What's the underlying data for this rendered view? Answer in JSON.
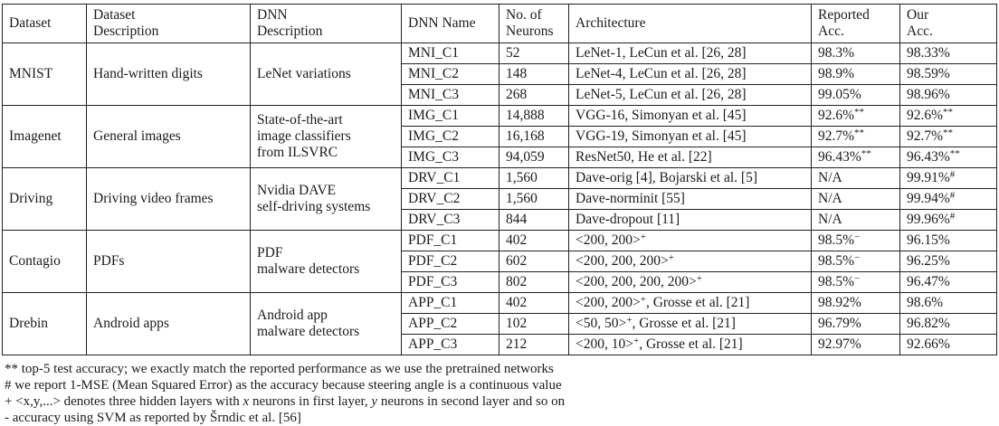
{
  "table": {
    "headers": [
      {
        "key": "dataset",
        "segments": [
          {
            "t": "Dataset"
          }
        ]
      },
      {
        "key": "dataset-description",
        "segments": [
          {
            "t": "Dataset"
          },
          {
            "br": true
          },
          {
            "t": "Description"
          }
        ]
      },
      {
        "key": "dnn-description",
        "segments": [
          {
            "t": "DNN"
          },
          {
            "br": true
          },
          {
            "t": "Description"
          }
        ]
      },
      {
        "key": "dnn-name",
        "segments": [
          {
            "t": "DNN Name"
          }
        ]
      },
      {
        "key": "no-of-neurons",
        "segments": [
          {
            "t": "No. of"
          },
          {
            "br": true
          },
          {
            "t": "Neurons"
          }
        ]
      },
      {
        "key": "architecture",
        "segments": [
          {
            "t": "Architecture"
          }
        ]
      },
      {
        "key": "reported-acc",
        "segments": [
          {
            "t": "Reported"
          },
          {
            "br": true
          },
          {
            "t": "Acc."
          }
        ]
      },
      {
        "key": "our-acc",
        "segments": [
          {
            "t": "Our"
          },
          {
            "br": true
          },
          {
            "t": "Acc."
          }
        ]
      }
    ],
    "groups": [
      {
        "dataset": [
          {
            "t": "MNIST"
          }
        ],
        "dataset_description": [
          {
            "t": "Hand-written digits"
          }
        ],
        "dnn_description": [
          {
            "t": "LeNet variations"
          }
        ],
        "rows": [
          {
            "dnn_name": [
              {
                "t": "MNI_C1"
              }
            ],
            "neurons": [
              {
                "t": "52"
              }
            ],
            "architecture": [
              {
                "t": "LeNet-1, LeCun et al. [26, 28]"
              }
            ],
            "reported_acc": [
              {
                "t": "98.3%"
              }
            ],
            "our_acc": [
              {
                "t": "98.33%"
              }
            ]
          },
          {
            "dnn_name": [
              {
                "t": "MNI_C2"
              }
            ],
            "neurons": [
              {
                "t": "148"
              }
            ],
            "architecture": [
              {
                "t": "LeNet-4, LeCun et al. [26, 28]"
              }
            ],
            "reported_acc": [
              {
                "t": "98.9%"
              }
            ],
            "our_acc": [
              {
                "t": "98.59%"
              }
            ]
          },
          {
            "dnn_name": [
              {
                "t": "MNI_C3"
              }
            ],
            "neurons": [
              {
                "t": "268"
              }
            ],
            "architecture": [
              {
                "t": "LeNet-5, LeCun et al. [26, 28]"
              }
            ],
            "reported_acc": [
              {
                "t": "99.05%"
              }
            ],
            "our_acc": [
              {
                "t": "98.96%"
              }
            ]
          }
        ]
      },
      {
        "dataset": [
          {
            "t": "Imagenet"
          }
        ],
        "dataset_description": [
          {
            "t": "General images"
          }
        ],
        "dnn_description": [
          {
            "t": "State-of-the-art"
          },
          {
            "br": true
          },
          {
            "t": "image classifiers"
          },
          {
            "br": true
          },
          {
            "t": "from ILSVRC"
          }
        ],
        "rows": [
          {
            "dnn_name": [
              {
                "t": "IMG_C1"
              }
            ],
            "neurons": [
              {
                "t": "14,888"
              }
            ],
            "architecture": [
              {
                "t": "VGG-16, Simonyan et al. [45]"
              }
            ],
            "reported_acc": [
              {
                "t": "92.6%"
              },
              {
                "sup": "**"
              }
            ],
            "our_acc": [
              {
                "t": "92.6%"
              },
              {
                "sup": "**"
              }
            ]
          },
          {
            "dnn_name": [
              {
                "t": "IMG_C2"
              }
            ],
            "neurons": [
              {
                "t": "16,168"
              }
            ],
            "architecture": [
              {
                "t": "VGG-19, Simonyan et al. [45]"
              }
            ],
            "reported_acc": [
              {
                "t": "92.7%"
              },
              {
                "sup": "**"
              }
            ],
            "our_acc": [
              {
                "t": "92.7%"
              },
              {
                "sup": "**"
              }
            ]
          },
          {
            "dnn_name": [
              {
                "t": "IMG_C3"
              }
            ],
            "neurons": [
              {
                "t": "94,059"
              }
            ],
            "architecture": [
              {
                "t": "ResNet50, He et al. [22]"
              }
            ],
            "reported_acc": [
              {
                "t": "96.43%"
              },
              {
                "sup": "**"
              }
            ],
            "our_acc": [
              {
                "t": "96.43%"
              },
              {
                "sup": "**"
              }
            ]
          }
        ]
      },
      {
        "dataset": [
          {
            "t": "Driving"
          }
        ],
        "dataset_description": [
          {
            "t": "Driving video frames"
          }
        ],
        "dnn_description": [
          {
            "t": "Nvidia DAVE"
          },
          {
            "br": true
          },
          {
            "t": "self-driving systems"
          }
        ],
        "rows": [
          {
            "dnn_name": [
              {
                "t": "DRV_C1"
              }
            ],
            "neurons": [
              {
                "t": "1,560"
              }
            ],
            "architecture": [
              {
                "t": "Dave-orig [4], Bojarski et al. [5]"
              }
            ],
            "reported_acc": [
              {
                "t": "N/A"
              }
            ],
            "our_acc": [
              {
                "t": "99.91%"
              },
              {
                "sup": "#"
              }
            ]
          },
          {
            "dnn_name": [
              {
                "t": "DRV_C2"
              }
            ],
            "neurons": [
              {
                "t": "1,560"
              }
            ],
            "architecture": [
              {
                "t": "Dave-norminit [55]"
              }
            ],
            "reported_acc": [
              {
                "t": "N/A"
              }
            ],
            "our_acc": [
              {
                "t": "99.94%"
              },
              {
                "sup": "#"
              }
            ]
          },
          {
            "dnn_name": [
              {
                "t": "DRV_C3"
              }
            ],
            "neurons": [
              {
                "t": "844"
              }
            ],
            "architecture": [
              {
                "t": "Dave-dropout [11]"
              }
            ],
            "reported_acc": [
              {
                "t": "N/A"
              }
            ],
            "our_acc": [
              {
                "t": "99.96%"
              },
              {
                "sup": "#"
              }
            ]
          }
        ]
      },
      {
        "dataset": [
          {
            "t": "Contagio"
          }
        ],
        "dataset_description": [
          {
            "t": "PDFs"
          }
        ],
        "dnn_description": [
          {
            "t": "PDF"
          },
          {
            "br": true
          },
          {
            "t": "malware detectors"
          }
        ],
        "rows": [
          {
            "dnn_name": [
              {
                "t": "PDF_C1"
              }
            ],
            "neurons": [
              {
                "t": "402"
              }
            ],
            "architecture": [
              {
                "t": "<200, 200>"
              },
              {
                "sup": "+"
              }
            ],
            "reported_acc": [
              {
                "t": "98.5%"
              },
              {
                "sup": "−"
              }
            ],
            "our_acc": [
              {
                "t": "96.15%"
              }
            ]
          },
          {
            "dnn_name": [
              {
                "t": "PDF_C2"
              }
            ],
            "neurons": [
              {
                "t": "602"
              }
            ],
            "architecture": [
              {
                "t": "<200, 200, 200>"
              },
              {
                "sup": "+"
              }
            ],
            "reported_acc": [
              {
                "t": "98.5%"
              },
              {
                "sup": "−"
              }
            ],
            "our_acc": [
              {
                "t": "96.25%"
              }
            ]
          },
          {
            "dnn_name": [
              {
                "t": "PDF_C3"
              }
            ],
            "neurons": [
              {
                "t": "802"
              }
            ],
            "architecture": [
              {
                "t": "<200, 200, 200, 200>"
              },
              {
                "sup": "+"
              }
            ],
            "reported_acc": [
              {
                "t": "98.5%"
              },
              {
                "sup": "−"
              }
            ],
            "our_acc": [
              {
                "t": "96.47%"
              }
            ]
          }
        ]
      },
      {
        "dataset": [
          {
            "t": "Drebin"
          }
        ],
        "dataset_description": [
          {
            "t": "Android apps"
          }
        ],
        "dnn_description": [
          {
            "t": "Android app"
          },
          {
            "br": true
          },
          {
            "t": "malware detectors"
          }
        ],
        "rows": [
          {
            "dnn_name": [
              {
                "t": "APP_C1"
              }
            ],
            "neurons": [
              {
                "t": "402"
              }
            ],
            "architecture": [
              {
                "t": "<200, 200>"
              },
              {
                "sup": "+"
              },
              {
                "t": ", Grosse et al. [21]"
              }
            ],
            "reported_acc": [
              {
                "t": "98.92%"
              }
            ],
            "our_acc": [
              {
                "t": "98.6%"
              }
            ]
          },
          {
            "dnn_name": [
              {
                "t": "APP_C2"
              }
            ],
            "neurons": [
              {
                "t": "102"
              }
            ],
            "architecture": [
              {
                "t": "<50, 50>"
              },
              {
                "sup": "+"
              },
              {
                "t": ", Grosse et al. [21]"
              }
            ],
            "reported_acc": [
              {
                "t": "96.79%"
              }
            ],
            "our_acc": [
              {
                "t": "96.82%"
              }
            ]
          },
          {
            "dnn_name": [
              {
                "t": "APP_C3"
              }
            ],
            "neurons": [
              {
                "t": "212"
              }
            ],
            "architecture": [
              {
                "t": "<200, 10>"
              },
              {
                "sup": "+"
              },
              {
                "t": ", Grosse et al. [21]"
              }
            ],
            "reported_acc": [
              {
                "t": "92.97%"
              }
            ],
            "our_acc": [
              {
                "t": "92.66%"
              }
            ]
          }
        ]
      }
    ]
  },
  "footnotes": [
    {
      "segments": [
        {
          "t": "** top-5 test accuracy; we exactly match the reported performance as we use the pretrained networks"
        }
      ]
    },
    {
      "segments": [
        {
          "t": "# we report 1-MSE (Mean Squared Error) as the accuracy because steering angle is a continuous value"
        }
      ]
    },
    {
      "segments": [
        {
          "t": "+ <x,y,...> denotes three hidden layers with "
        },
        {
          "i": "x"
        },
        {
          "t": " neurons in first layer, "
        },
        {
          "i": "y"
        },
        {
          "t": " neurons in second layer and so on"
        }
      ]
    },
    {
      "segments": [
        {
          "t": "- accuracy using SVM as reported by Šrndic et al. [56]"
        }
      ]
    }
  ]
}
